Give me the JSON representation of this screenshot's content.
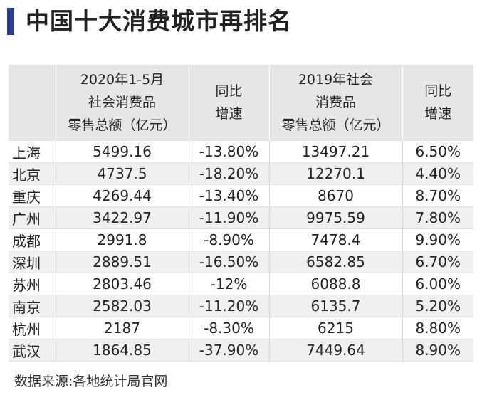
{
  "title": "中国十大消费城市再排名",
  "table": {
    "headers": [
      [
        ""
      ],
      [
        "2020年1-5月",
        "社会消费品",
        "零售总额（亿元）"
      ],
      [
        "同比",
        "增速"
      ],
      [
        "2019年社会",
        "消费品",
        "零售总额（亿元）"
      ],
      [
        "同比",
        "增速"
      ]
    ],
    "rows": [
      [
        "上海",
        "5499.16",
        "-13.80%",
        "13497.21",
        "6.50%"
      ],
      [
        "北京",
        "4737.5",
        "-18.20%",
        "12270.1",
        "4.40%"
      ],
      [
        "重庆",
        "4269.44",
        "-13.40%",
        "8670",
        "8.70%"
      ],
      [
        "广州",
        "3422.97",
        "-11.90%",
        "9975.59",
        "7.80%"
      ],
      [
        "成都",
        "2991.8",
        "-8.90%",
        "7478.4",
        "9.90%"
      ],
      [
        "深圳",
        "2889.51",
        "-16.50%",
        "6582.85",
        "6.70%"
      ],
      [
        "苏州",
        "2803.46",
        "-12%",
        "6088.8",
        "6.00%"
      ],
      [
        "南京",
        "2582.03",
        "-11.20%",
        "6135.7",
        "5.20%"
      ],
      [
        "杭州",
        "2187",
        "-8.30%",
        "6215",
        "8.80%"
      ],
      [
        "武汉",
        "1864.85",
        "-37.90%",
        "7449.64",
        "8.90%"
      ]
    ]
  },
  "source": "数据来源:各地统计局官网",
  "colors": {
    "accent": "#2b3f91",
    "header_bg": "#e6e6e6"
  }
}
